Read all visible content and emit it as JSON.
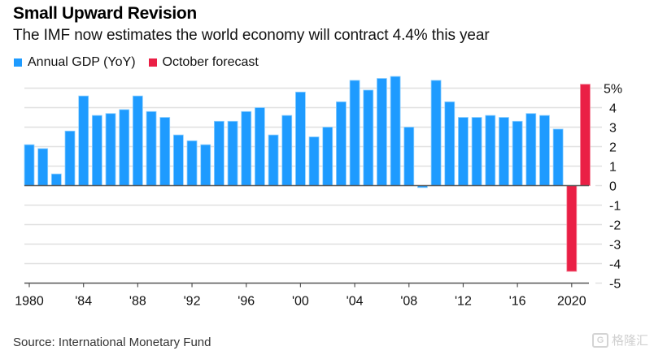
{
  "header": {
    "title": "Small Upward Revision",
    "subtitle": "The IMF now estimates the world economy will contract 4.4% this year"
  },
  "legend": [
    {
      "label": "Annual GDP (YoY)",
      "color": "#1e9bff"
    },
    {
      "label": "October forecast",
      "color": "#ea1f45"
    }
  ],
  "footer": {
    "source": "Source: International Monetary Fund",
    "watermark": "格隆汇",
    "watermark_icon": "G"
  },
  "chart_data": {
    "type": "bar",
    "title": "Small Upward Revision",
    "subtitle": "The IMF now estimates the world economy will contract 4.4% this year",
    "xlabel": "",
    "ylabel": "",
    "ylim": [
      -5,
      5
    ],
    "yticks": [
      5,
      4,
      3,
      2,
      1,
      0,
      -1,
      -2,
      -3,
      -4,
      -5
    ],
    "ytick_labels": [
      "5%",
      "4",
      "3",
      "2",
      "1",
      "0",
      "-1",
      "-2",
      "-3",
      "-4",
      "-5"
    ],
    "xtick_years": [
      1980,
      1984,
      1988,
      1992,
      1996,
      2000,
      2004,
      2008,
      2012,
      2016,
      2020
    ],
    "xtick_labels": [
      "1980",
      "'84",
      "'88",
      "'92",
      "'96",
      "'00",
      "'04",
      "'08",
      "'12",
      "'16",
      "2020"
    ],
    "grid": true,
    "legend_position": "top-left",
    "categories": [
      1980,
      1981,
      1982,
      1983,
      1984,
      1985,
      1986,
      1987,
      1988,
      1989,
      1990,
      1991,
      1992,
      1993,
      1994,
      1995,
      1996,
      1997,
      1998,
      1999,
      2000,
      2001,
      2002,
      2003,
      2004,
      2005,
      2006,
      2007,
      2008,
      2009,
      2010,
      2011,
      2012,
      2013,
      2014,
      2015,
      2016,
      2017,
      2018,
      2019,
      2020,
      2021
    ],
    "series": [
      {
        "name": "Annual GDP (YoY)",
        "color": "#1e9bff",
        "values": [
          2.1,
          1.9,
          0.6,
          2.8,
          4.6,
          3.6,
          3.7,
          3.9,
          4.6,
          3.8,
          3.5,
          2.6,
          2.3,
          2.1,
          3.3,
          3.3,
          3.8,
          4.0,
          2.6,
          3.6,
          4.8,
          2.5,
          3.0,
          4.3,
          5.4,
          4.9,
          5.5,
          5.6,
          3.0,
          -0.1,
          5.4,
          4.3,
          3.5,
          3.5,
          3.6,
          3.5,
          3.3,
          3.7,
          3.6,
          2.9,
          null,
          null
        ]
      },
      {
        "name": "October forecast",
        "color": "#ea1f45",
        "values": [
          null,
          null,
          null,
          null,
          null,
          null,
          null,
          null,
          null,
          null,
          null,
          null,
          null,
          null,
          null,
          null,
          null,
          null,
          null,
          null,
          null,
          null,
          null,
          null,
          null,
          null,
          null,
          null,
          null,
          null,
          null,
          null,
          null,
          null,
          null,
          null,
          null,
          null,
          null,
          null,
          -4.4,
          5.2
        ]
      }
    ]
  }
}
